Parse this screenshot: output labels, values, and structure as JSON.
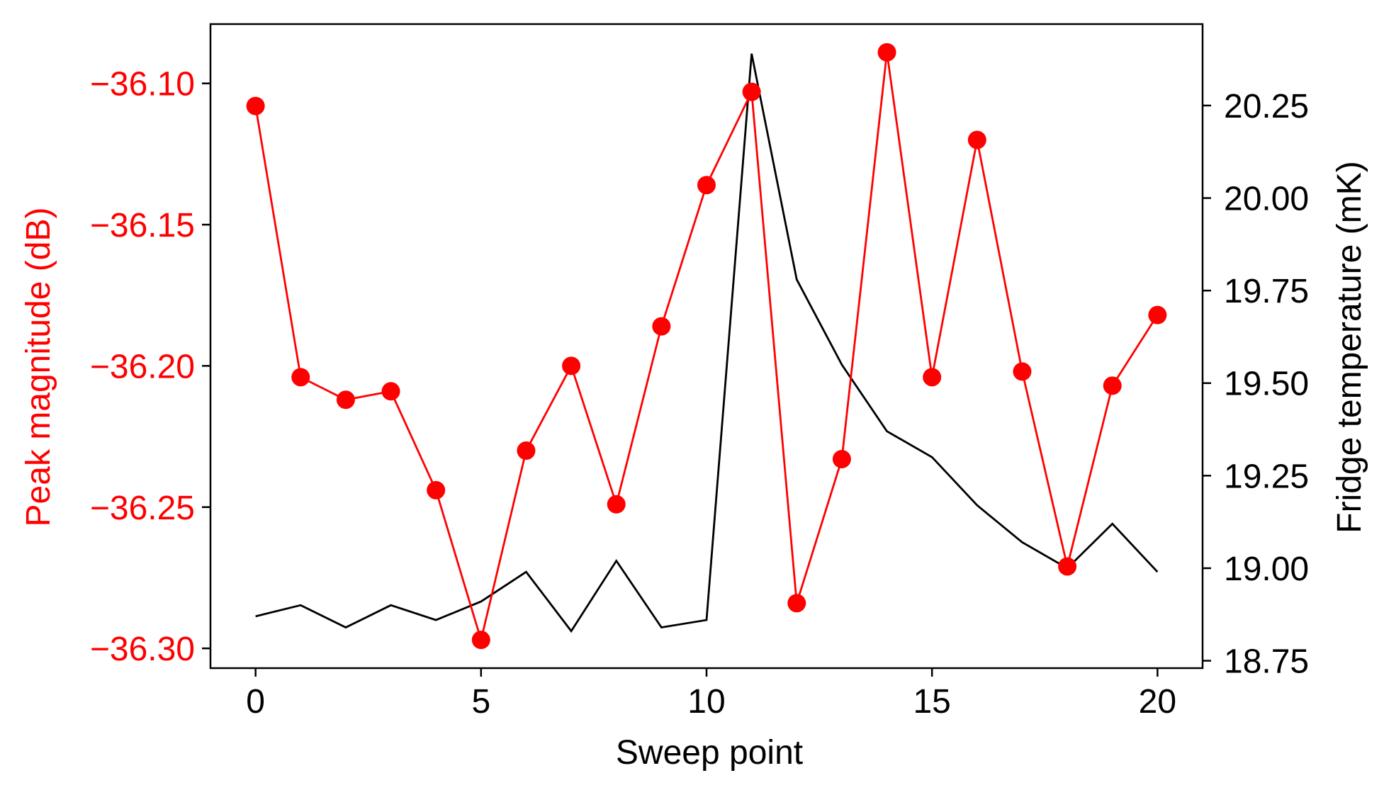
{
  "chart_data": {
    "type": "line",
    "xlabel": "Sweep point",
    "ylabel_left": "Peak magnitude (dB)",
    "ylabel_right": "Fridge temperature (mK)",
    "xlim": [
      -1,
      21
    ],
    "ylim_left": [
      -36.307,
      -36.079
    ],
    "ylim_right": [
      18.73,
      20.47
    ],
    "x_ticks": [
      0,
      5,
      10,
      15,
      20
    ],
    "x_tick_labels": [
      "0",
      "5",
      "10",
      "15",
      "20"
    ],
    "y_left_ticks": [
      -36.1,
      -36.15,
      -36.2,
      -36.25,
      -36.3
    ],
    "y_left_tick_labels": [
      "−36.10",
      "−36.15",
      "−36.20",
      "−36.25",
      "−36.30"
    ],
    "y_right_ticks": [
      20.25,
      20.0,
      19.75,
      19.5,
      19.25,
      19.0,
      18.75
    ],
    "y_right_tick_labels": [
      "20.25",
      "20.00",
      "19.75",
      "19.50",
      "19.25",
      "19.00",
      "18.75"
    ],
    "x": [
      0,
      1,
      2,
      3,
      4,
      5,
      6,
      7,
      8,
      9,
      10,
      11,
      12,
      13,
      14,
      15,
      16,
      17,
      18,
      19,
      20
    ],
    "series": [
      {
        "axis": "left",
        "color": "#ff0000",
        "marker": "circle",
        "values": [
          -36.108,
          -36.204,
          -36.212,
          -36.209,
          -36.244,
          -36.297,
          -36.23,
          -36.2,
          -36.249,
          -36.186,
          -36.136,
          -36.103,
          -36.284,
          -36.233,
          -36.089,
          -36.204,
          -36.12,
          -36.202,
          -36.271,
          -36.207,
          -36.182
        ]
      },
      {
        "axis": "right",
        "color": "#000000",
        "marker": "none",
        "values": [
          18.87,
          18.9,
          18.84,
          18.9,
          18.86,
          18.91,
          18.99,
          18.83,
          19.02,
          18.84,
          18.86,
          20.39,
          19.78,
          19.55,
          19.37,
          19.3,
          19.17,
          19.07,
          19.0,
          19.12,
          18.99
        ]
      }
    ],
    "colors": {
      "left_axis": "#ff0000",
      "right_axis": "#000000"
    },
    "grid": false
  }
}
